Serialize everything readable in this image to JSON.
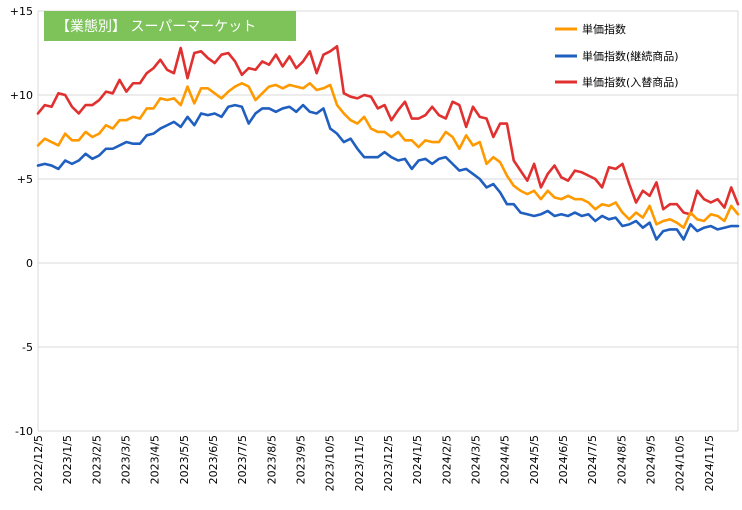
{
  "chart_data": {
    "type": "line",
    "badge": "【業態別】 スーパーマーケット",
    "ylim": [
      -10,
      15
    ],
    "yticks": [
      "+15",
      "+10",
      "+5",
      "0",
      "-5",
      "-10"
    ],
    "ytick_values": [
      15,
      10,
      5,
      0,
      -5,
      -10
    ],
    "x_tick_labels": [
      "2022/12/5",
      "2023/1/5",
      "2023/2/5",
      "2023/3/5",
      "2023/4/5",
      "2023/5/5",
      "2023/6/5",
      "2023/7/5",
      "2023/8/5",
      "2023/9/5",
      "2023/10/5",
      "2023/11/5",
      "2023/12/5",
      "2024/1/5",
      "2024/2/5",
      "2024/3/5",
      "2024/4/5",
      "2024/5/5",
      "2024/6/5",
      "2024/7/5",
      "2024/8/5",
      "2024/9/5",
      "2024/10/5",
      "2024/11/5"
    ],
    "grid": true,
    "legend_position": "top-right",
    "colors": {
      "main": "#FF9900",
      "continuing": "#1F5FBF",
      "replaced": "#E03030",
      "badge": "#7DC35A",
      "grid": "#D9D9D9"
    },
    "series": [
      {
        "name": "単価指数",
        "color": "#FF9900",
        "values": [
          7.0,
          7.4,
          7.2,
          7.0,
          7.7,
          7.3,
          7.3,
          7.8,
          7.5,
          7.7,
          8.2,
          8.0,
          8.5,
          8.5,
          8.7,
          8.6,
          9.2,
          9.2,
          9.8,
          9.7,
          9.8,
          9.4,
          10.5,
          9.5,
          10.4,
          10.4,
          10.1,
          9.8,
          10.2,
          10.5,
          10.7,
          10.5,
          9.7,
          10.1,
          10.5,
          10.6,
          10.4,
          10.6,
          10.5,
          10.4,
          10.7,
          10.3,
          10.4,
          10.6,
          9.4,
          8.9,
          8.5,
          8.3,
          8.7,
          8.0,
          7.8,
          7.8,
          7.5,
          7.8,
          7.3,
          7.3,
          6.9,
          7.3,
          7.2,
          7.2,
          7.8,
          7.5,
          6.8,
          7.6,
          7.0,
          7.2,
          5.9,
          6.3,
          6.0,
          5.2,
          4.6,
          4.3,
          4.1,
          4.3,
          3.8,
          4.3,
          3.9,
          3.8,
          4.0,
          3.8,
          3.8,
          3.6,
          3.2,
          3.5,
          3.4,
          3.6,
          3.0,
          2.6,
          3.0,
          2.7,
          3.4,
          2.3,
          2.5,
          2.6,
          2.4,
          2.1,
          3.0,
          2.6,
          2.5,
          2.9,
          2.8,
          2.5,
          3.4,
          2.9
        ]
      },
      {
        "name": "単価指数(継続商品)",
        "color": "#1F5FBF",
        "values": [
          5.8,
          5.9,
          5.8,
          5.6,
          6.1,
          5.9,
          6.1,
          6.5,
          6.2,
          6.4,
          6.8,
          6.8,
          7.0,
          7.2,
          7.1,
          7.1,
          7.6,
          7.7,
          8.0,
          8.2,
          8.4,
          8.1,
          8.7,
          8.2,
          8.9,
          8.8,
          8.9,
          8.7,
          9.3,
          9.4,
          9.3,
          8.3,
          8.9,
          9.2,
          9.2,
          9.0,
          9.2,
          9.3,
          9.0,
          9.4,
          9.0,
          8.9,
          9.2,
          8.0,
          7.7,
          7.2,
          7.4,
          6.8,
          6.3,
          6.3,
          6.3,
          6.6,
          6.3,
          6.1,
          6.2,
          5.6,
          6.1,
          6.2,
          5.9,
          6.2,
          6.3,
          5.9,
          5.5,
          5.6,
          5.3,
          5.0,
          4.5,
          4.7,
          4.2,
          3.5,
          3.5,
          3.0,
          2.9,
          2.8,
          2.9,
          3.1,
          2.8,
          2.9,
          2.8,
          3.0,
          2.8,
          2.9,
          2.5,
          2.8,
          2.6,
          2.7,
          2.2,
          2.3,
          2.5,
          2.1,
          2.4,
          1.4,
          1.9,
          2.0,
          2.0,
          1.4,
          2.3,
          1.9,
          2.1,
          2.2,
          2.0,
          2.1,
          2.2,
          2.2
        ]
      },
      {
        "name": "単価指数(入替商品)",
        "color": "#E03030",
        "values": [
          8.9,
          9.4,
          9.3,
          10.1,
          10.0,
          9.3,
          8.9,
          9.4,
          9.4,
          9.7,
          10.2,
          10.1,
          10.9,
          10.2,
          10.7,
          10.7,
          11.3,
          11.6,
          12.1,
          11.5,
          11.3,
          12.8,
          11.0,
          12.5,
          12.6,
          12.2,
          11.9,
          12.4,
          12.5,
          12.0,
          11.2,
          11.6,
          11.5,
          12.0,
          11.8,
          12.4,
          11.7,
          12.3,
          11.6,
          12.0,
          12.6,
          11.3,
          12.4,
          12.6,
          12.9,
          10.1,
          9.9,
          9.8,
          10.0,
          9.9,
          9.2,
          9.4,
          8.5,
          9.1,
          9.6,
          8.6,
          8.6,
          8.8,
          9.3,
          8.8,
          8.6,
          9.6,
          9.4,
          8.1,
          9.3,
          8.7,
          8.6,
          7.5,
          8.3,
          8.3,
          6.1,
          5.5,
          4.9,
          5.9,
          4.5,
          5.3,
          5.8,
          5.1,
          4.9,
          5.5,
          5.4,
          5.2,
          5.0,
          4.5,
          5.7,
          5.6,
          5.9,
          4.7,
          3.6,
          4.3,
          4.0,
          4.8,
          3.2,
          3.5,
          3.5,
          3.0,
          2.9,
          4.3,
          3.8,
          3.6,
          3.8,
          3.3,
          4.5,
          3.5
        ]
      }
    ]
  }
}
